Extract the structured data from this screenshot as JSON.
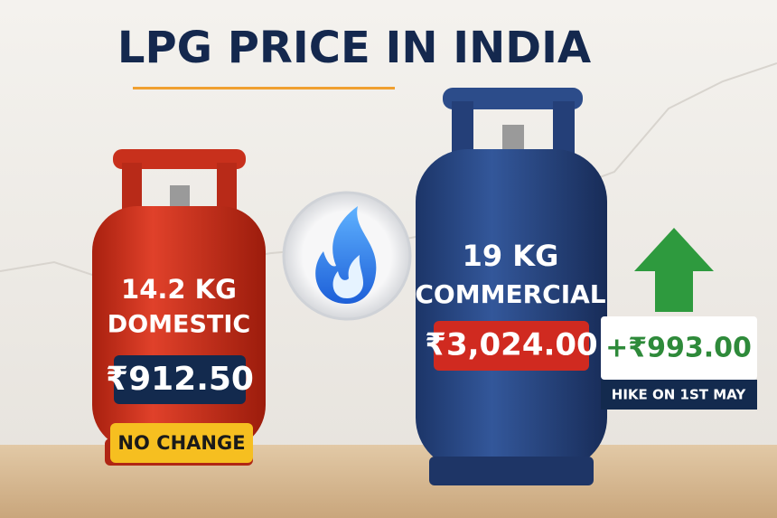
{
  "title": "LPG PRICE IN INDIA",
  "domestic": {
    "weight": "14.2 KG",
    "kind": "DOMESTIC",
    "price": "₹912.50",
    "status": "NO CHANGE"
  },
  "commercial": {
    "weight": "19 KG",
    "kind": "COMMERCIAL",
    "price": "₹3,024.00"
  },
  "change": {
    "amount": "+₹993.00",
    "note": "HIKE ON 1ST MAY"
  }
}
